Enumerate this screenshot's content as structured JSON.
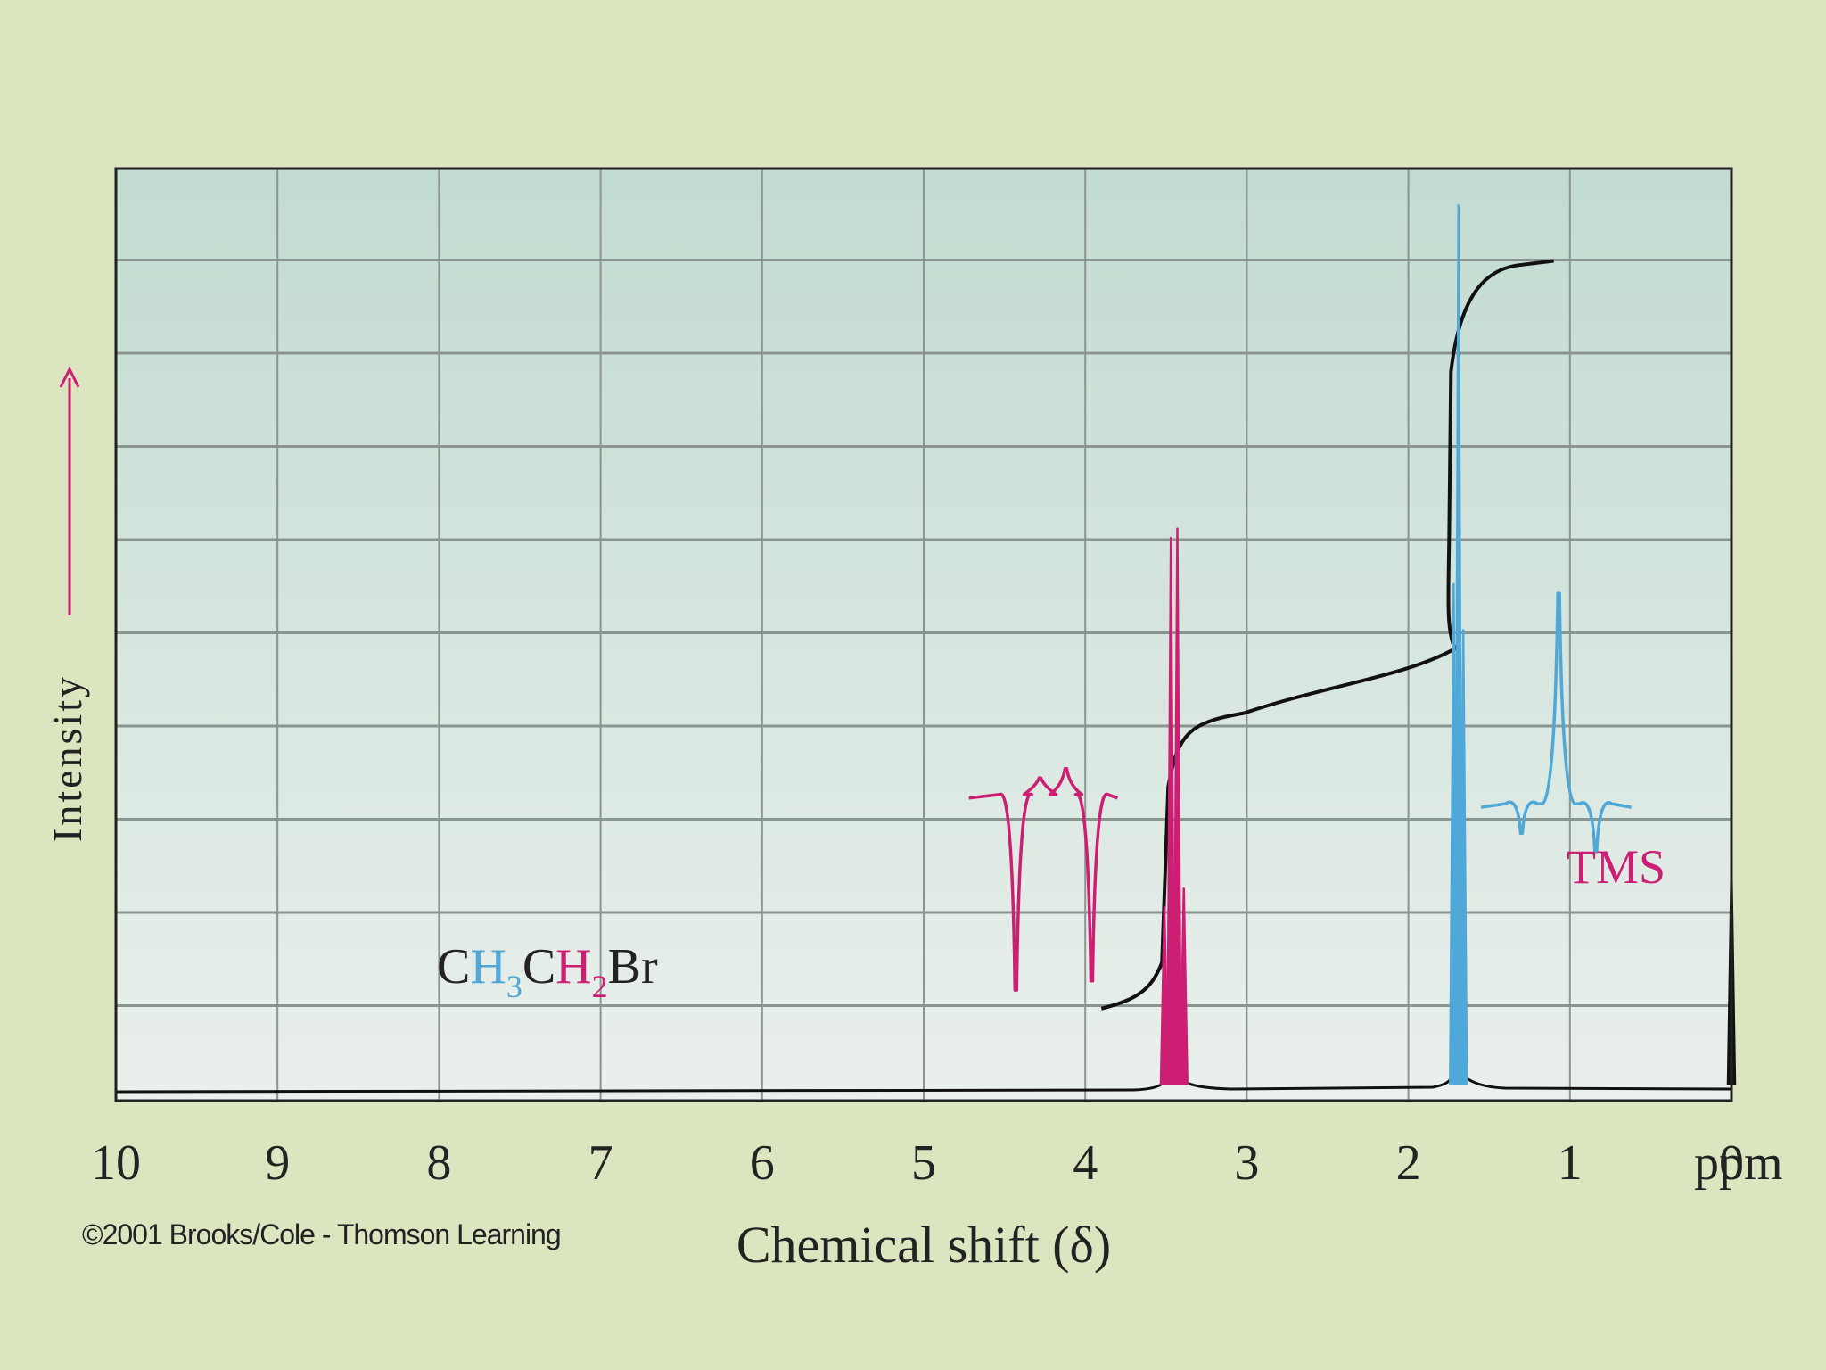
{
  "chart_data": {
    "type": "line",
    "title": "",
    "xlabel": "Chemical shift (δ)",
    "x_unit": "ppm",
    "ylabel": "Intensity",
    "xlim": [
      10,
      0
    ],
    "x_reversed": true,
    "xticks": [
      "10",
      "9",
      "8",
      "7",
      "6",
      "5",
      "4",
      "3",
      "2",
      "1",
      "0"
    ],
    "grid": true,
    "compound": {
      "c1": "C",
      "h1": "H",
      "sub1": "3",
      "c2": "C",
      "h2": "H",
      "sub2": "2",
      "br": "Br"
    },
    "annotation_tms": "TMS",
    "colors": {
      "background": "#dbe6c0",
      "plot_top": "#c2dbd0",
      "plot_bottom": "#eaf0ec",
      "grid": "#8a9491",
      "spectrum": "#111111",
      "ch2": "#cc1f74",
      "ch3": "#4fa8d8",
      "integral": "#111111"
    },
    "series": [
      {
        "group": "CH2 quartet (Br-CH2)",
        "color": "#cc1f74",
        "peaks": [
          [
            3.51,
            0.2
          ],
          [
            3.47,
            0.6
          ],
          [
            3.43,
            0.61
          ],
          [
            3.39,
            0.22
          ]
        ]
      },
      {
        "group": "CH3 triplet",
        "color": "#4fa8d8",
        "peaks": [
          [
            1.72,
            0.55
          ],
          [
            1.69,
            0.96
          ],
          [
            1.66,
            0.5
          ]
        ]
      },
      {
        "group": "TMS reference",
        "color": "#111111",
        "peaks": [
          [
            0.0,
            0.245
          ]
        ]
      }
    ],
    "insets": [
      {
        "group": "CH2 quartet expansion",
        "color": "#cc1f74",
        "peak_heights": [
          0.11,
          0.34,
          0.35,
          0.12
        ]
      },
      {
        "group": "CH3 triplet expansion",
        "color": "#4fa8d8",
        "peak_heights": [
          0.28,
          0.54,
          0.26
        ]
      }
    ],
    "integral": {
      "color": "#111111",
      "steps": [
        {
          "x_start": 3.9,
          "x_end": 3.35,
          "from": 0.09,
          "to": 0.4
        },
        {
          "x_start": 1.8,
          "x_end": 1.1,
          "from": 0.47,
          "to": 0.9
        }
      ]
    }
  },
  "copyright": "©2001 Brooks/Cole - Thomson Learning"
}
